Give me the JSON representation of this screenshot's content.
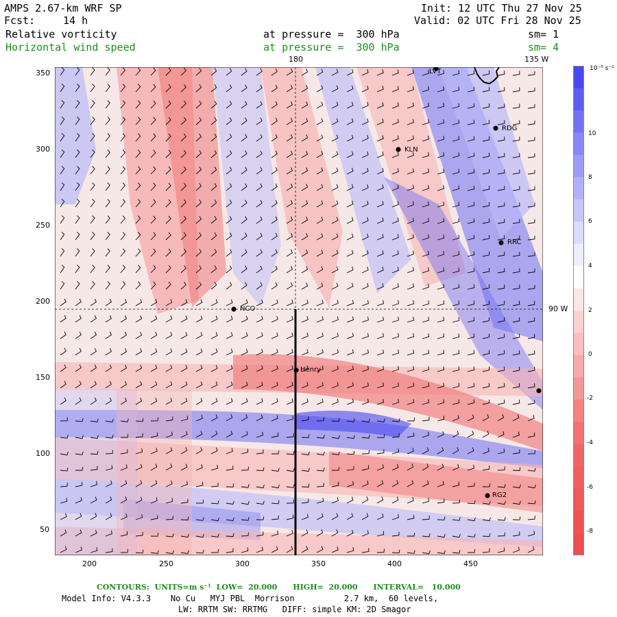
{
  "header": {
    "title": "AMPS 2.67-km WRF SP",
    "fcst_label": "Fcst:",
    "fcst_value": "14 h",
    "init": "Init: 12 UTC Thu 27 Nov 25",
    "valid": "Valid: 02 UTC Fri 28 Nov 25",
    "field1_name": "Relative vorticity",
    "field1_level": "at pressure =  300 hPa",
    "field1_sm": "sm= 1",
    "field2_name": "Horizontal wind speed",
    "field2_level": "at pressure =  300 hPa",
    "field2_sm": "sm= 4"
  },
  "map": {
    "meridian_label": "180",
    "meridian_right_label": "135 W",
    "parallel_label": "90 W",
    "x_ticks": [
      "200",
      "250",
      "300",
      "350",
      "400",
      "450"
    ],
    "y_ticks": [
      "350",
      "300",
      "250",
      "200",
      "150",
      "100",
      "50"
    ],
    "stations": [
      {
        "name": "LVT"
      },
      {
        "name": "RDG"
      },
      {
        "name": "KLN"
      },
      {
        "name": "RRC"
      },
      {
        "name": "NCO"
      },
      {
        "name": "Henry"
      },
      {
        "name": "RG2"
      }
    ]
  },
  "colorbar": {
    "unit_label": "10⁻⁵ s⁻¹",
    "labels": [
      "10",
      "8",
      "6",
      "4",
      "2",
      "0",
      "-2",
      "-4",
      "-6",
      "-8"
    ],
    "colors": {
      "positive": "#3c3cf0",
      "negative": "#f06464",
      "neutral": "#ffffff"
    }
  },
  "footer": {
    "contours": "CONTOURS:  UNITS=m s⁻¹  LOW=  20.000      HIGH=  20.000      INTERVAL=   10.000",
    "model_info": "Model Info: V4.3.3    No Cu   MYJ PBL  Morrison          2.7 km,  60 levels,",
    "model_info2": "LW: RRTM SW: RRTMG   DIFF: simple KM: 2D Smagor"
  }
}
